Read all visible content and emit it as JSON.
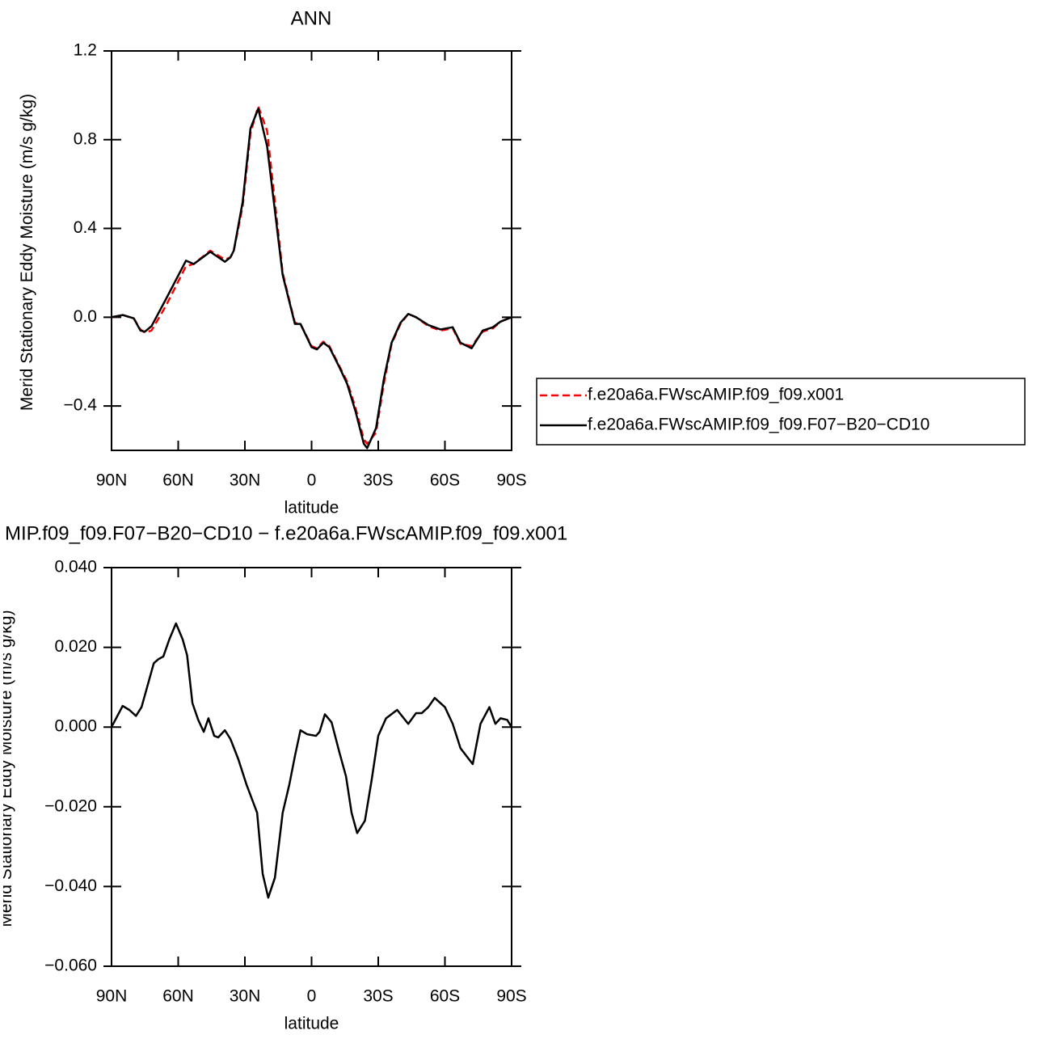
{
  "chart_data": [
    {
      "type": "line",
      "title": "ANN",
      "x_label": "latitude",
      "y_label": "Merid Stationary Eddy Moisture (m/s g/kg)",
      "x": [
        90,
        85,
        80,
        77,
        75,
        72,
        65.6,
        56.5,
        53,
        45.6,
        39,
        36.5,
        35,
        31,
        27.5,
        24,
        20,
        16.5,
        13,
        9,
        7.5,
        5,
        0,
        -2.4,
        -5.3,
        -8,
        -12.5,
        -16,
        -19.8,
        -23.5,
        -25,
        -29,
        -32.5,
        -36,
        -40,
        -43.5,
        -47,
        -52.5,
        -58,
        -63.5,
        -67,
        -72,
        -77,
        -81.6,
        -85,
        -90
      ],
      "series": [
        {
          "name": "f.e20a6a.FWscAMIP.f09_f09.x001",
          "color": "#ff0000",
          "dash": true,
          "values": [
            0.0,
            0.01,
            -0.005,
            -0.055,
            -0.07,
            -0.06,
            0.05,
            0.23,
            0.24,
            0.3,
            0.26,
            0.27,
            0.3,
            0.5,
            0.83,
            0.95,
            0.84,
            0.52,
            0.2,
            0.035,
            -0.025,
            -0.03,
            -0.13,
            -0.14,
            -0.11,
            -0.13,
            -0.22,
            -0.29,
            -0.41,
            -0.55,
            -0.57,
            -0.52,
            -0.3,
            -0.12,
            -0.03,
            0.015,
            0.0,
            -0.04,
            -0.06,
            -0.05,
            -0.12,
            -0.13,
            -0.065,
            -0.05,
            -0.02,
            0.0
          ]
        },
        {
          "name": "f.e20a6a.FWscAMIP.f09_f09.F07−B20−CD10",
          "color": "#000000",
          "dash": false,
          "values": [
            0.0,
            0.01,
            -0.005,
            -0.06,
            -0.065,
            -0.04,
            0.08,
            0.255,
            0.24,
            0.295,
            0.25,
            0.27,
            0.3,
            0.52,
            0.85,
            0.94,
            0.77,
            0.48,
            0.19,
            0.03,
            -0.03,
            -0.03,
            -0.135,
            -0.145,
            -0.115,
            -0.135,
            -0.225,
            -0.3,
            -0.425,
            -0.57,
            -0.59,
            -0.5,
            -0.28,
            -0.115,
            -0.025,
            0.015,
            0.0,
            -0.035,
            -0.055,
            -0.045,
            -0.115,
            -0.14,
            -0.06,
            -0.045,
            -0.02,
            0.0
          ]
        }
      ],
      "xlim": [
        90,
        -90
      ],
      "xticks": [
        {
          "value": 90,
          "label": "90N"
        },
        {
          "value": 60,
          "label": "60N"
        },
        {
          "value": 30,
          "label": "30N"
        },
        0,
        {
          "value": -30,
          "label": "30S"
        },
        {
          "value": -60,
          "label": "60S"
        },
        {
          "value": -90,
          "label": "90S"
        }
      ],
      "ylim": [
        -0.6,
        1.2
      ],
      "yticks": [
        1.2,
        0.8,
        0.4,
        {
          "value": 0,
          "label": "0.0"
        },
        {
          "value": -0.4,
          "label": "−0.4"
        }
      ],
      "legend": "right"
    },
    {
      "type": "line",
      "title": "MIP.f09_f09.F07−B20−CD10 − f.e20a6a.FWscAMIP.f09_f09.x001",
      "x_label": "latitude",
      "y_label": "Merid Stationary Eddy Moisture (m/s g/kg)",
      "x": [
        90,
        85,
        82,
        79,
        76.5,
        74,
        71,
        69,
        66.7,
        64,
        61,
        58,
        56,
        53.6,
        51,
        48.5,
        46.4,
        43.8,
        42,
        39,
        36.5,
        33,
        29.3,
        24.5,
        22,
        19.5,
        16.5,
        13,
        10,
        7.5,
        5,
        2,
        -2,
        -3.6,
        -6,
        -9,
        -12.5,
        -15.5,
        -18,
        -20.5,
        -24,
        -27,
        -30,
        -33.5,
        -38.5,
        -43.5,
        -47,
        -49.6,
        -52.5,
        -55.4,
        -60,
        -63.5,
        -67,
        -72.5,
        -76,
        -80,
        -82.7,
        -85,
        -88,
        -90
      ],
      "series": [
        {
          "name": null,
          "color": "#000000",
          "dash": false,
          "values": [
            0.0,
            0.0053,
            0.0043,
            0.0028,
            0.005,
            0.01,
            0.016,
            0.017,
            0.0177,
            0.022,
            0.026,
            0.022,
            0.018,
            0.006,
            0.0018,
            -0.0012,
            0.0022,
            -0.0022,
            -0.0026,
            -0.0008,
            -0.003,
            -0.008,
            -0.0144,
            -0.0215,
            -0.0368,
            -0.0428,
            -0.0378,
            -0.0215,
            -0.0144,
            -0.0073,
            -0.0008,
            -0.0018,
            -0.0022,
            -0.0012,
            0.0032,
            0.0012,
            -0.0063,
            -0.0124,
            -0.0215,
            -0.0266,
            -0.0235,
            -0.0134,
            -0.0022,
            0.0022,
            0.0043,
            0.0008,
            0.0035,
            0.0035,
            0.005,
            0.0073,
            0.005,
            0.0008,
            -0.0053,
            -0.0093,
            0.0008,
            0.005,
            0.0008,
            0.0022,
            0.0018,
            0.0
          ]
        }
      ],
      "xlim": [
        90,
        -90
      ],
      "xticks": [
        {
          "value": 90,
          "label": "90N"
        },
        {
          "value": 60,
          "label": "60N"
        },
        {
          "value": 30,
          "label": "30N"
        },
        0,
        {
          "value": -30,
          "label": "30S"
        },
        {
          "value": -60,
          "label": "60S"
        },
        {
          "value": -90,
          "label": "90S"
        }
      ],
      "ylim": [
        -0.06,
        0.04
      ],
      "yticks": [
        {
          "value": 0.04,
          "label": "0.040"
        },
        {
          "value": 0.02,
          "label": "0.020"
        },
        {
          "value": 0,
          "label": "0.000"
        },
        {
          "value": -0.02,
          "label": "−0.020"
        },
        {
          "value": -0.04,
          "label": "−0.040"
        },
        {
          "value": -0.06,
          "label": "−0.060"
        }
      ]
    }
  ]
}
